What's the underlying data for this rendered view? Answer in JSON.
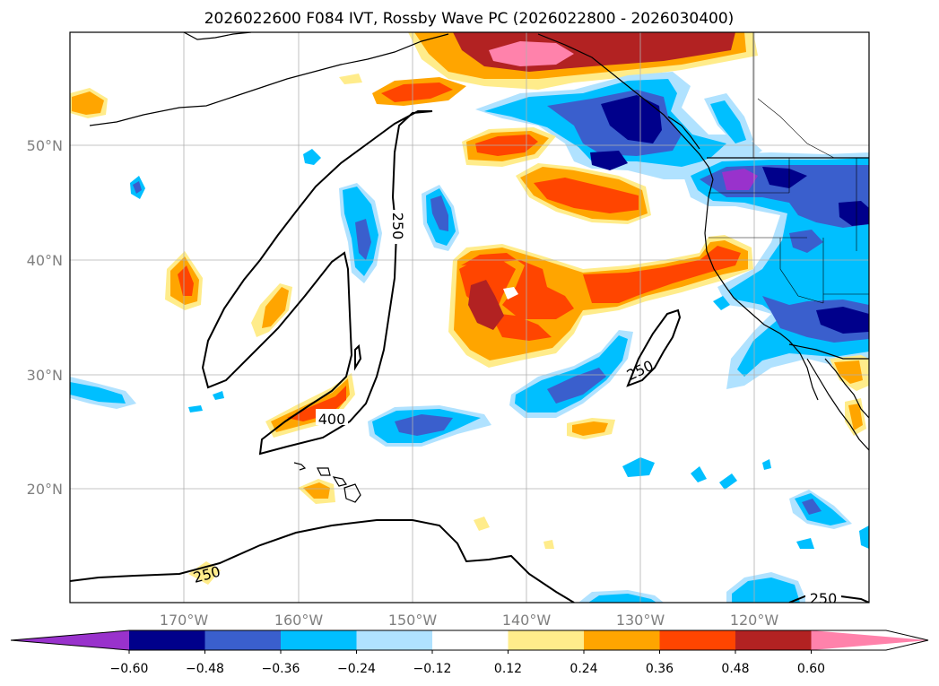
{
  "title": "2026022600 F084 IVT, Rossby Wave PC (2026022800 - 2026030400)",
  "axes": {
    "lat_labels": [
      "50°N",
      "40°N",
      "30°N",
      "20°N"
    ],
    "lon_labels": [
      "170°W",
      "160°W",
      "150°W",
      "140°W",
      "130°W",
      "120°W"
    ]
  },
  "contour_labels": [
    "250",
    "250",
    "400",
    "250",
    "250"
  ],
  "colorbar": {
    "ticks": [
      "−0.60",
      "−0.48",
      "−0.36",
      "−0.24",
      "−0.12",
      "0.12",
      "0.24",
      "0.36",
      "0.48",
      "0.60"
    ],
    "colors": [
      "#9932cc",
      "#00008b",
      "#3a5fcd",
      "#00bfff",
      "#b0e2ff",
      "#ffffff",
      "#ffec8b",
      "#ffa500",
      "#ff4500",
      "#b22222",
      "#ff82ab"
    ]
  },
  "palette": {
    "neg1": "#b0e2ff",
    "neg2": "#00bfff",
    "neg3": "#3a5fcd",
    "neg4": "#00008b",
    "neg5": "#9932cc",
    "pos1": "#ffec8b",
    "pos2": "#ffa500",
    "pos3": "#ff4500",
    "pos4": "#b22222",
    "pos5": "#ff82ab"
  }
}
